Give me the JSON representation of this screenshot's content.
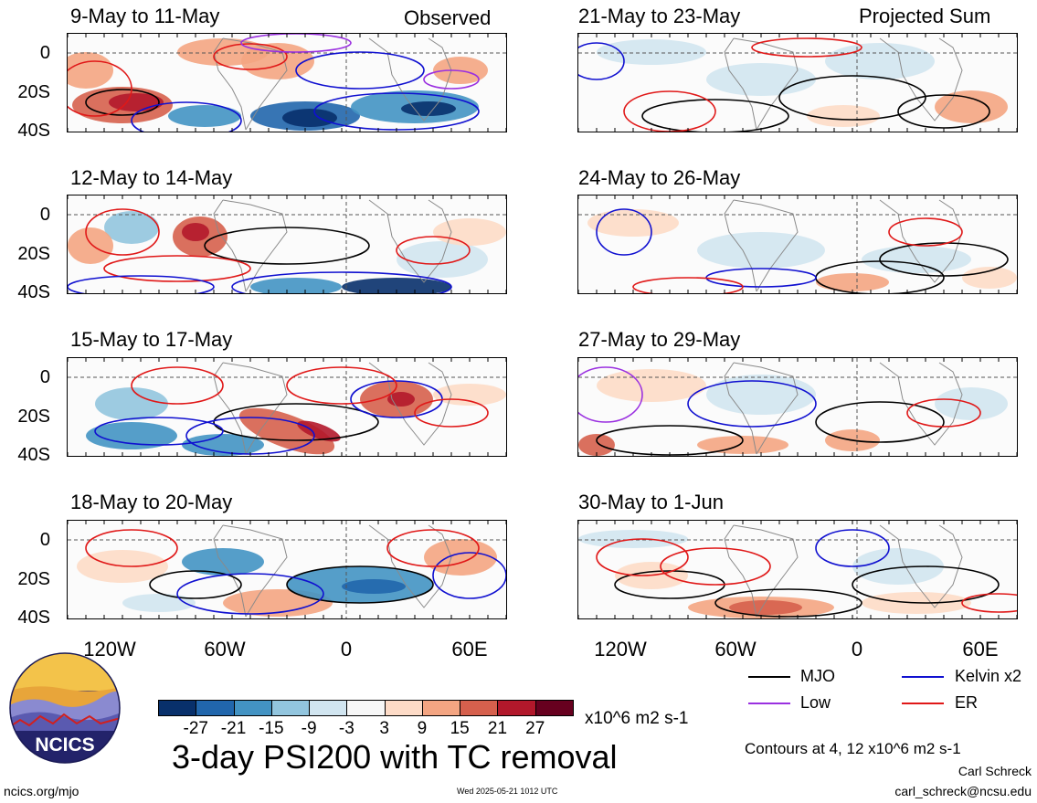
{
  "panels": [
    {
      "title": "9-May to 11-May",
      "corner": "Observed"
    },
    {
      "title": "21-May to 23-May",
      "corner": "Projected Sum"
    },
    {
      "title": "12-May to 14-May",
      "corner": ""
    },
    {
      "title": "24-May to 26-May",
      "corner": ""
    },
    {
      "title": "15-May to 17-May",
      "corner": ""
    },
    {
      "title": "27-May to 29-May",
      "corner": ""
    },
    {
      "title": "18-May to 20-May",
      "corner": ""
    },
    {
      "title": "30-May to 1-Jun",
      "corner": ""
    }
  ],
  "y_ticks": [
    "0",
    "20S",
    "40S"
  ],
  "x_ticks": [
    "120W",
    "60W",
    "0",
    "60E"
  ],
  "legend": {
    "mjo": "MJO",
    "kelvin": "Kelvin x2",
    "low": "Low",
    "er": "ER",
    "colors": {
      "mjo": "#000000",
      "kelvin": "#1010d0",
      "low": "#9a30e0",
      "er": "#e01818"
    }
  },
  "colorbar": {
    "ticks": [
      "-27",
      "-21",
      "-15",
      "-9",
      "-3",
      "3",
      "9",
      "15",
      "21",
      "27"
    ],
    "colors": [
      "#08306b",
      "#2166ac",
      "#4393c3",
      "#92c5de",
      "#d1e5f0",
      "#f7f7f7",
      "#fddbc7",
      "#f4a582",
      "#d6604d",
      "#b2182b",
      "#67001f"
    ],
    "units": "x10^6 m2 s-1"
  },
  "main_title": "3-day PSI200 with TC removal",
  "contour_note": "Contours at 4, 12 x10^6 m2 s-1",
  "author": "Carl Schreck",
  "email": "carl_schreck@ncsu.edu",
  "site": "ncics.org/mjo",
  "timestamp": "Wed 2025-05-21 1012 UTC",
  "logo_text": "NCICS"
}
